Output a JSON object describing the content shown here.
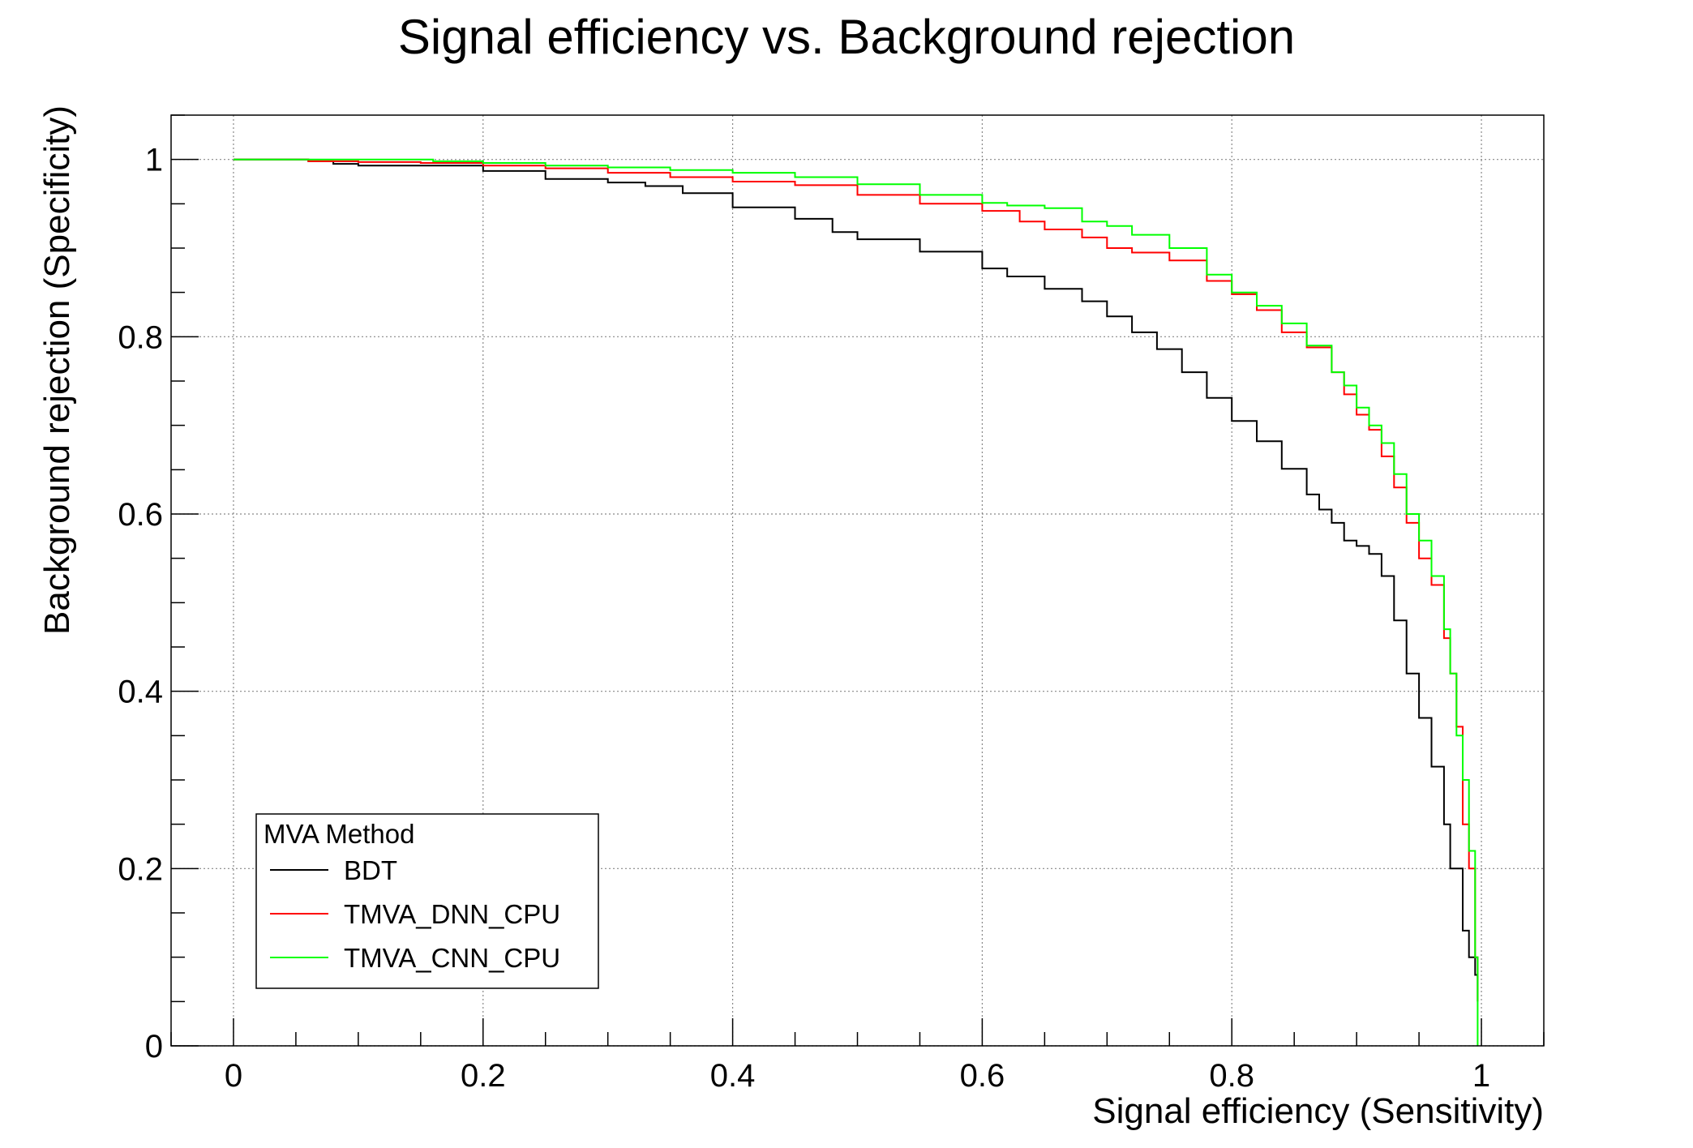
{
  "chart_data": {
    "type": "line",
    "title": "Signal efficiency vs. Background rejection",
    "xlabel": "Signal efficiency (Sensitivity)",
    "ylabel": "Background rejection (Specificity)",
    "xlim": [
      -0.05,
      1.05
    ],
    "ylim": [
      0,
      1.05
    ],
    "x_ticks": [
      "0",
      "0.2",
      "0.4",
      "0.6",
      "0.8",
      "1"
    ],
    "y_ticks": [
      "0",
      "0.2",
      "0.4",
      "0.6",
      "0.8",
      "1"
    ],
    "grid": true,
    "legend": {
      "title": "MVA Method",
      "placement": "bottom-left"
    },
    "series": [
      {
        "name": "BDT",
        "color": "#000000",
        "points": [
          [
            0.0,
            1.0
          ],
          [
            0.06,
            0.998
          ],
          [
            0.08,
            0.995
          ],
          [
            0.1,
            0.993
          ],
          [
            0.15,
            0.993
          ],
          [
            0.2,
            0.987
          ],
          [
            0.25,
            0.978
          ],
          [
            0.3,
            0.974
          ],
          [
            0.33,
            0.97
          ],
          [
            0.36,
            0.962
          ],
          [
            0.4,
            0.946
          ],
          [
            0.45,
            0.933
          ],
          [
            0.48,
            0.918
          ],
          [
            0.5,
            0.91
          ],
          [
            0.55,
            0.896
          ],
          [
            0.6,
            0.877
          ],
          [
            0.62,
            0.868
          ],
          [
            0.65,
            0.854
          ],
          [
            0.68,
            0.84
          ],
          [
            0.7,
            0.823
          ],
          [
            0.72,
            0.805
          ],
          [
            0.74,
            0.786
          ],
          [
            0.76,
            0.76
          ],
          [
            0.78,
            0.731
          ],
          [
            0.8,
            0.705
          ],
          [
            0.82,
            0.682
          ],
          [
            0.84,
            0.651
          ],
          [
            0.86,
            0.622
          ],
          [
            0.87,
            0.605
          ],
          [
            0.88,
            0.59
          ],
          [
            0.89,
            0.57
          ],
          [
            0.9,
            0.564
          ],
          [
            0.91,
            0.555
          ],
          [
            0.92,
            0.53
          ],
          [
            0.93,
            0.48
          ],
          [
            0.94,
            0.42
          ],
          [
            0.95,
            0.37
          ],
          [
            0.96,
            0.315
          ],
          [
            0.97,
            0.25
          ],
          [
            0.975,
            0.2
          ],
          [
            0.985,
            0.13
          ],
          [
            0.99,
            0.1
          ],
          [
            0.995,
            0.08
          ],
          [
            0.997,
            0.05
          ]
        ]
      },
      {
        "name": "TMVA_DNN_CPU",
        "color": "#ff0000",
        "points": [
          [
            0.0,
            1.0
          ],
          [
            0.06,
            0.998
          ],
          [
            0.1,
            0.997
          ],
          [
            0.15,
            0.996
          ],
          [
            0.2,
            0.993
          ],
          [
            0.25,
            0.99
          ],
          [
            0.3,
            0.985
          ],
          [
            0.35,
            0.98
          ],
          [
            0.4,
            0.975
          ],
          [
            0.45,
            0.971
          ],
          [
            0.5,
            0.96
          ],
          [
            0.55,
            0.95
          ],
          [
            0.6,
            0.942
          ],
          [
            0.63,
            0.93
          ],
          [
            0.65,
            0.921
          ],
          [
            0.68,
            0.912
          ],
          [
            0.7,
            0.9
          ],
          [
            0.72,
            0.895
          ],
          [
            0.75,
            0.886
          ],
          [
            0.78,
            0.863
          ],
          [
            0.8,
            0.848
          ],
          [
            0.82,
            0.83
          ],
          [
            0.84,
            0.805
          ],
          [
            0.86,
            0.788
          ],
          [
            0.88,
            0.76
          ],
          [
            0.89,
            0.735
          ],
          [
            0.9,
            0.712
          ],
          [
            0.91,
            0.695
          ],
          [
            0.92,
            0.665
          ],
          [
            0.93,
            0.63
          ],
          [
            0.94,
            0.59
          ],
          [
            0.95,
            0.55
          ],
          [
            0.96,
            0.52
          ],
          [
            0.97,
            0.46
          ],
          [
            0.975,
            0.42
          ],
          [
            0.98,
            0.36
          ],
          [
            0.985,
            0.25
          ],
          [
            0.99,
            0.2
          ],
          [
            0.995,
            0.1
          ],
          [
            0.997,
            0.05
          ]
        ]
      },
      {
        "name": "TMVA_CNN_CPU",
        "color": "#00ff00",
        "points": [
          [
            0.0,
            1.0
          ],
          [
            0.1,
            1.0
          ],
          [
            0.16,
            0.998
          ],
          [
            0.2,
            0.996
          ],
          [
            0.25,
            0.993
          ],
          [
            0.3,
            0.991
          ],
          [
            0.35,
            0.988
          ],
          [
            0.4,
            0.985
          ],
          [
            0.45,
            0.98
          ],
          [
            0.5,
            0.972
          ],
          [
            0.55,
            0.96
          ],
          [
            0.6,
            0.951
          ],
          [
            0.62,
            0.948
          ],
          [
            0.65,
            0.945
          ],
          [
            0.68,
            0.93
          ],
          [
            0.7,
            0.925
          ],
          [
            0.72,
            0.915
          ],
          [
            0.75,
            0.9
          ],
          [
            0.78,
            0.87
          ],
          [
            0.8,
            0.85
          ],
          [
            0.82,
            0.835
          ],
          [
            0.84,
            0.815
          ],
          [
            0.86,
            0.79
          ],
          [
            0.88,
            0.76
          ],
          [
            0.89,
            0.745
          ],
          [
            0.9,
            0.72
          ],
          [
            0.91,
            0.7
          ],
          [
            0.92,
            0.68
          ],
          [
            0.93,
            0.645
          ],
          [
            0.94,
            0.6
          ],
          [
            0.95,
            0.57
          ],
          [
            0.96,
            0.53
          ],
          [
            0.97,
            0.47
          ],
          [
            0.975,
            0.42
          ],
          [
            0.98,
            0.35
          ],
          [
            0.985,
            0.3
          ],
          [
            0.99,
            0.22
          ],
          [
            0.995,
            0.1
          ],
          [
            0.997,
            0.0
          ]
        ]
      }
    ]
  }
}
